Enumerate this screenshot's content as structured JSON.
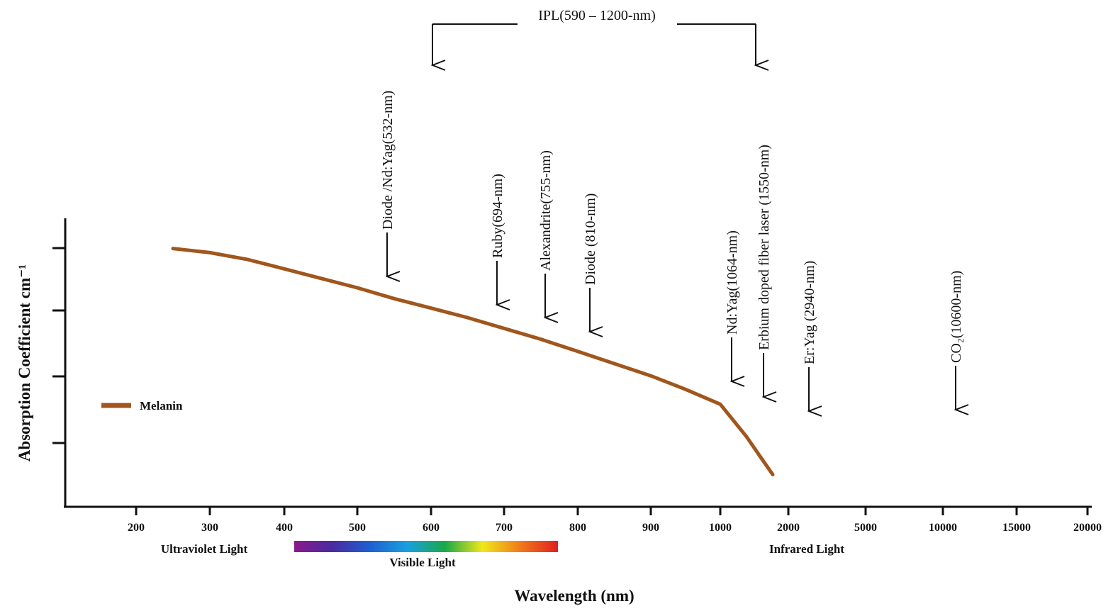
{
  "chart_data": {
    "type": "line",
    "xlabel": "Wavelength (nm)",
    "ylabel": "Absorption Coefficient cm⁻¹",
    "x_scale": "categorical (non-uniform)",
    "x_ticks": [
      "200",
      "300",
      "400",
      "500",
      "600",
      "700",
      "800",
      "900",
      "1000",
      "2000",
      "5000",
      "10000",
      "15000",
      "20000"
    ],
    "y_ticks_labeled": false,
    "grid": false,
    "legend_position": "middle-left",
    "series": [
      {
        "name": "Melanin",
        "color": "#a0561c",
        "x": [
          250,
          300,
          350,
          400,
          450,
          500,
          550,
          600,
          650,
          700,
          750,
          800,
          850,
          900,
          950,
          1000,
          1050,
          1100,
          1150,
          1200
        ],
        "y": [
          0.98,
          0.965,
          0.94,
          0.905,
          0.87,
          0.835,
          0.795,
          0.76,
          0.725,
          0.685,
          0.645,
          0.6,
          0.555,
          0.51,
          0.46,
          0.405,
          0.345,
          0.285,
          0.215,
          0.145
        ]
      }
    ],
    "annotations": [
      {
        "label": "Diode /Nd:Yag(532-nm)",
        "x": 532
      },
      {
        "label": "Ruby(694-nm)",
        "x": 694
      },
      {
        "label": "Alexandrite(755-nm)",
        "x": 755
      },
      {
        "label": "Diode (810-nm)",
        "x": 810
      },
      {
        "label": "Nd:Yag(1064-nm)",
        "x": 1064
      },
      {
        "label": "Erbium doped fiber laser (1550-nm)",
        "x": 1550
      },
      {
        "label": "Er:Yag (2940-nm)",
        "x": 2940
      },
      {
        "label": "CO₂(10600-nm)",
        "x": 10600
      }
    ],
    "range_annotation": {
      "label": "IPL(590 – 1200-nm)",
      "from": 590,
      "to": 1200
    },
    "regions": [
      {
        "label": "Ultraviolet Light"
      },
      {
        "label": "Visible Light"
      },
      {
        "label": "Infrared Light"
      }
    ],
    "spectrum_colors": [
      "#8b1a8b",
      "#4a2aa0",
      "#1f5fd0",
      "#1aa0e0",
      "#1aa84a",
      "#f0e81a",
      "#f07a1a",
      "#e02020"
    ]
  }
}
